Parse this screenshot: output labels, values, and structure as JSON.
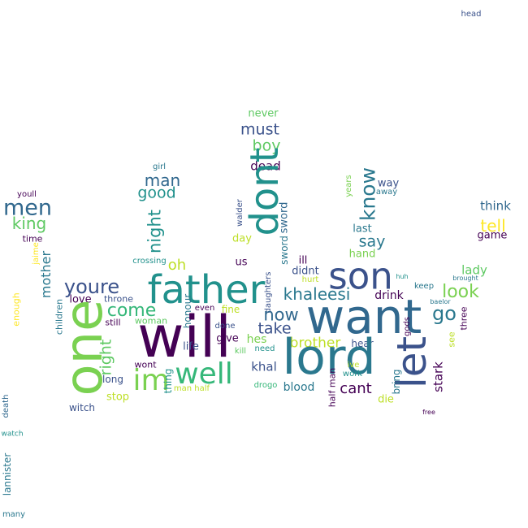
{
  "words": [
    {
      "text": "head",
      "color": "#3b528b"
    },
    {
      "text": "never",
      "color": "#5ec962"
    },
    {
      "text": "must",
      "color": "#3b528b"
    },
    {
      "text": "boy",
      "color": "#5ec962"
    },
    {
      "text": "dead",
      "color": "#440154"
    },
    {
      "text": "girl",
      "color": "#2a788e"
    },
    {
      "text": "man",
      "color": "#31688e"
    },
    {
      "text": "good",
      "color": "#21918c"
    },
    {
      "text": "dont",
      "color": "#21918c"
    },
    {
      "text": "know",
      "color": "#2a788e"
    },
    {
      "text": "years",
      "color": "#7ad151"
    },
    {
      "text": "way",
      "color": "#3b528b"
    },
    {
      "text": "away",
      "color": "#2a788e"
    },
    {
      "text": "youll",
      "color": "#440154"
    },
    {
      "text": "men",
      "color": "#31688e"
    },
    {
      "text": "king",
      "color": "#5ec962"
    },
    {
      "text": "time",
      "color": "#440154"
    },
    {
      "text": "jaime",
      "color": "#fde725"
    },
    {
      "text": "walder",
      "color": "#3b528b"
    },
    {
      "text": "sword",
      "color": "#31688e"
    },
    {
      "text": "sword",
      "color": "#2a788e"
    },
    {
      "text": "night",
      "color": "#21918c"
    },
    {
      "text": "day",
      "color": "#bddf26"
    },
    {
      "text": "last",
      "color": "#2a788e"
    },
    {
      "text": "say",
      "color": "#2a788e"
    },
    {
      "text": "think",
      "color": "#31688e"
    },
    {
      "text": "tell",
      "color": "#fde725"
    },
    {
      "text": "game",
      "color": "#440154"
    },
    {
      "text": "crossing",
      "color": "#21918c"
    },
    {
      "text": "oh",
      "color": "#bddf26"
    },
    {
      "text": "us",
      "color": "#440154"
    },
    {
      "text": "ill",
      "color": "#440154"
    },
    {
      "text": "hand",
      "color": "#7ad151"
    },
    {
      "text": "lady",
      "color": "#5ec962"
    },
    {
      "text": "mother",
      "color": "#2a788e"
    },
    {
      "text": "father",
      "color": "#21918c"
    },
    {
      "text": "son",
      "color": "#3b528b"
    },
    {
      "text": "didnt",
      "color": "#3b528b"
    },
    {
      "text": "khaleesi",
      "color": "#2a788e"
    },
    {
      "text": "hurt",
      "color": "#bddf26"
    },
    {
      "text": "huh",
      "color": "#21918c"
    },
    {
      "text": "brought",
      "color": "#2a788e"
    },
    {
      "text": "enough",
      "color": "#fde725"
    },
    {
      "text": "youre",
      "color": "#3b528b"
    },
    {
      "text": "love",
      "color": "#440154"
    },
    {
      "text": "throne",
      "color": "#3b528b"
    },
    {
      "text": "come",
      "color": "#35b779"
    },
    {
      "text": "daughters",
      "color": "#3b528b"
    },
    {
      "text": "drink",
      "color": "#440154"
    },
    {
      "text": "keep",
      "color": "#2a788e"
    },
    {
      "text": "look",
      "color": "#7ad151"
    },
    {
      "text": "baelor",
      "color": "#2a788e"
    },
    {
      "text": "want",
      "color": "#31688e"
    },
    {
      "text": "children",
      "color": "#2a788e"
    },
    {
      "text": "one",
      "color": "#7ad151"
    },
    {
      "text": "still",
      "color": "#440154"
    },
    {
      "text": "even",
      "color": "#440154"
    },
    {
      "text": "now",
      "color": "#31688e"
    },
    {
      "text": "go",
      "color": "#2a788e"
    },
    {
      "text": "three",
      "color": "#440154"
    },
    {
      "text": "fine",
      "color": "#bddf26"
    },
    {
      "text": "woman",
      "color": "#5ec962"
    },
    {
      "text": "honour",
      "color": "#2a788e"
    },
    {
      "text": "will",
      "color": "#440154"
    },
    {
      "text": "done",
      "color": "#3b528b"
    },
    {
      "text": "take",
      "color": "#3b528b"
    },
    {
      "text": "gods",
      "color": "#440154"
    },
    {
      "text": "see",
      "color": "#bddf26"
    },
    {
      "text": "give",
      "color": "#440154"
    },
    {
      "text": "hes",
      "color": "#7ad151"
    },
    {
      "text": "brother",
      "color": "#bddf26"
    },
    {
      "text": "life",
      "color": "#3b528b"
    },
    {
      "text": "hear",
      "color": "#3b528b"
    },
    {
      "text": "need",
      "color": "#21918c"
    },
    {
      "text": "lord",
      "color": "#2a788e"
    },
    {
      "text": "let",
      "color": "#3b528b"
    },
    {
      "text": "right",
      "color": "#5ec962"
    },
    {
      "text": "wont",
      "color": "#440154"
    },
    {
      "text": "im",
      "color": "#7ad151"
    },
    {
      "text": "well",
      "color": "#35b779"
    },
    {
      "text": "thing",
      "color": "#21918c"
    },
    {
      "text": "khal",
      "color": "#3b528b"
    },
    {
      "text": "stark",
      "color": "#440154"
    },
    {
      "text": "long",
      "color": "#3b528b"
    },
    {
      "text": "cant",
      "color": "#440154"
    },
    {
      "text": "bring",
      "color": "#2a788e"
    },
    {
      "text": "half man",
      "color": "#440154"
    },
    {
      "text": "ive",
      "color": "#bddf26"
    },
    {
      "text": "work",
      "color": "#21918c"
    },
    {
      "text": "blood",
      "color": "#2a788e"
    },
    {
      "text": "man half",
      "color": "#bddf26"
    },
    {
      "text": "stop",
      "color": "#bddf26"
    },
    {
      "text": "drogo",
      "color": "#35b779"
    },
    {
      "text": "die",
      "color": "#bddf26"
    },
    {
      "text": "death",
      "color": "#31688e"
    },
    {
      "text": "witch",
      "color": "#3b528b"
    },
    {
      "text": "kill",
      "color": "#5ec962"
    },
    {
      "text": "free",
      "color": "#440154"
    },
    {
      "text": "watch",
      "color": "#21918c"
    },
    {
      "text": "lannister",
      "color": "#2a788e"
    },
    {
      "text": "many",
      "color": "#2a788e"
    }
  ]
}
